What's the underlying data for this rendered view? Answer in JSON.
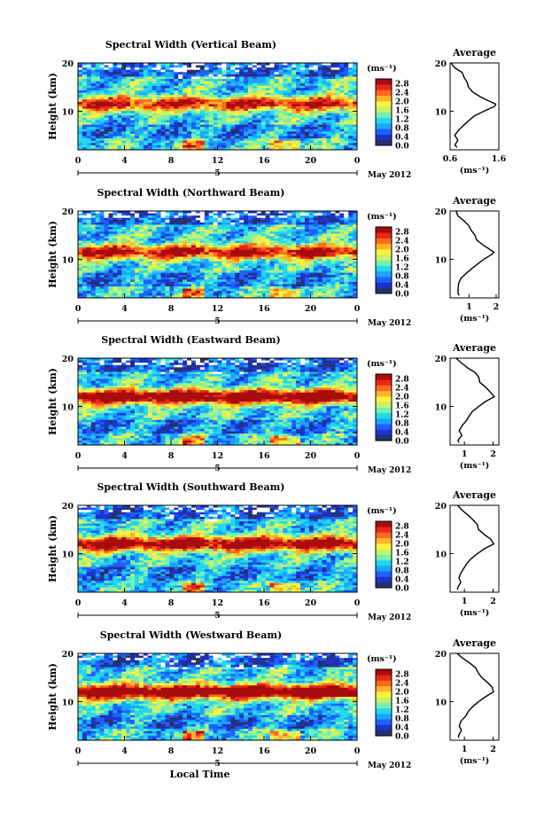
{
  "colorbar": {
    "unit": "(ms⁻¹)",
    "tick_labels": [
      "2.8",
      "2.4",
      "2.0",
      "1.6",
      "1.2",
      "0.8",
      "0.4",
      "0.0"
    ],
    "range": [
      0.0,
      3.0
    ],
    "colors": [
      "#28306e",
      "#1c32c8",
      "#1e60ff",
      "#19a6ff",
      "#23d8ee",
      "#74f0b0",
      "#c8f06a",
      "#fff23c",
      "#ffb428",
      "#ff6a1c",
      "#e8281a",
      "#a80c0c"
    ]
  },
  "x_axis": {
    "ticks": [
      "0",
      "4",
      "8",
      "12",
      "16",
      "20",
      "0"
    ],
    "range": [
      0,
      24
    ],
    "day_label": "5",
    "date_label": "May 2012",
    "xlabel": "Local Time"
  },
  "y_axis": {
    "ylabel": "Height (km)",
    "ticks": [
      "20",
      "10"
    ],
    "range": [
      2,
      20
    ]
  },
  "average_panel": {
    "title": "Average",
    "xlabel": "(ms⁻¹)"
  },
  "chart_data": [
    {
      "type": "heatmap",
      "title": "Spectral Width (Vertical Beam)",
      "ylabel": "Height (km)",
      "xlabel": "",
      "band_height_km": 11.5,
      "band_strength": 0.55,
      "profile": {
        "type": "line",
        "title": "Average",
        "xlabel": "(ms⁻¹)",
        "xlim": [
          0.6,
          1.6
        ],
        "xticks": [
          "0.6",
          "1.6"
        ],
        "height_km": [
          2.5,
          3,
          4,
          5,
          6,
          7,
          8,
          9,
          10,
          11,
          11.5,
          12,
          13,
          14,
          15,
          16,
          17,
          18,
          19,
          20
        ],
        "values": [
          0.75,
          0.7,
          0.76,
          0.7,
          0.78,
          0.88,
          0.98,
          1.1,
          1.3,
          1.5,
          1.55,
          1.42,
          1.22,
          1.05,
          0.98,
          0.94,
          0.9,
          0.85,
          0.7,
          0.62
        ]
      }
    },
    {
      "type": "heatmap",
      "title": "Spectral Width (Northward Beam)",
      "ylabel": "Height (km)",
      "xlabel": "",
      "band_height_km": 11.5,
      "band_strength": 0.6,
      "profile": {
        "type": "line",
        "title": "Average",
        "xlabel": "(ms⁻¹)",
        "xlim": [
          0.3,
          2.1
        ],
        "xticks": [
          "1",
          "2"
        ],
        "height_km": [
          2.5,
          3,
          4,
          5,
          6,
          7,
          8,
          9,
          10,
          11,
          11.5,
          12,
          13,
          14,
          15,
          16,
          17,
          18,
          19,
          20
        ],
        "values": [
          0.65,
          0.6,
          0.62,
          0.62,
          0.7,
          0.9,
          1.1,
          1.3,
          1.55,
          1.85,
          1.9,
          1.8,
          1.5,
          1.3,
          1.2,
          1.1,
          1.0,
          0.8,
          0.6,
          0.5
        ]
      }
    },
    {
      "type": "heatmap",
      "title": "Spectral Width (Eastward Beam)",
      "ylabel": "Height (km)",
      "xlabel": "",
      "band_height_km": 12,
      "band_strength": 0.75,
      "profile": {
        "type": "line",
        "title": "Average",
        "xlabel": "(ms⁻¹)",
        "xlim": [
          0.5,
          2.2
        ],
        "xticks": [
          "1",
          "2"
        ],
        "height_km": [
          2.5,
          3,
          4,
          5,
          6,
          7,
          8,
          9,
          10,
          11,
          12,
          13,
          14,
          15,
          16,
          17,
          18,
          19,
          20
        ],
        "values": [
          0.8,
          0.78,
          0.9,
          0.82,
          0.9,
          1.05,
          1.15,
          1.3,
          1.5,
          1.75,
          2.05,
          1.9,
          1.75,
          1.55,
          1.5,
          1.4,
          1.1,
          0.9,
          0.7
        ]
      }
    },
    {
      "type": "heatmap",
      "title": "Spectral Width (Southward Beam)",
      "ylabel": "Height (km)",
      "xlabel": "",
      "band_height_km": 12,
      "band_strength": 0.7,
      "profile": {
        "type": "line",
        "title": "Average",
        "xlabel": "(ms⁻¹)",
        "xlim": [
          0.5,
          2.2
        ],
        "xticks": [
          "1",
          "2"
        ],
        "height_km": [
          2.5,
          3,
          4,
          5,
          6,
          7,
          8,
          9,
          10,
          11,
          12,
          13,
          14,
          15,
          16,
          17,
          18,
          19,
          20
        ],
        "values": [
          0.78,
          0.75,
          0.85,
          0.8,
          0.88,
          1.0,
          1.1,
          1.25,
          1.45,
          1.7,
          2.0,
          1.9,
          1.7,
          1.5,
          1.45,
          1.3,
          1.1,
          0.9,
          0.75
        ]
      }
    },
    {
      "type": "heatmap",
      "title": "Spectral Width (Westward Beam)",
      "ylabel": "Height (km)",
      "xlabel": "Local Time",
      "band_height_km": 12,
      "band_strength": 0.8,
      "profile": {
        "type": "line",
        "title": "Average",
        "xlabel": "(ms⁻¹)",
        "xlim": [
          0.5,
          2.2
        ],
        "xticks": [
          "1",
          "2"
        ],
        "height_km": [
          2.5,
          3,
          4,
          5,
          6,
          7,
          8,
          9,
          10,
          11,
          12,
          13,
          14,
          15,
          16,
          17,
          18,
          19,
          20
        ],
        "values": [
          0.8,
          0.78,
          0.88,
          0.82,
          0.9,
          1.05,
          1.15,
          1.3,
          1.5,
          1.75,
          2.0,
          1.95,
          1.8,
          1.6,
          1.5,
          1.4,
          1.2,
          0.95,
          0.75
        ]
      }
    }
  ]
}
